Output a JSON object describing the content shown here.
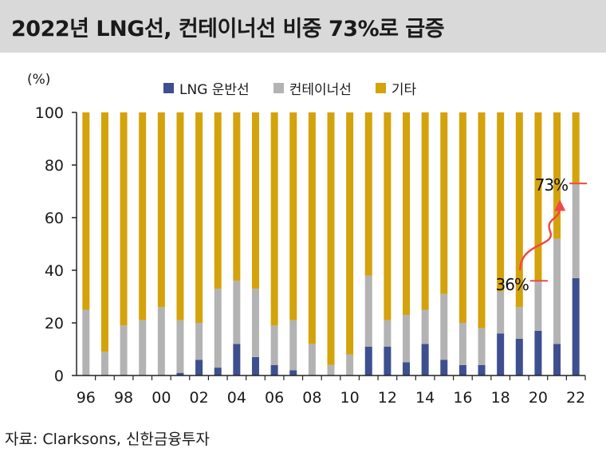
{
  "title": "2022년 LNG선, 컨테이너선 비중 73%로 급증",
  "unit_label": "(%)",
  "source": "자료: Clarksons, 신한금융투자",
  "colors": {
    "lng": "#3d4f8f",
    "container": "#b3b3b3",
    "other": "#d4a20b",
    "axis": "#222222",
    "annotation": "#f04848"
  },
  "legend": [
    {
      "label": "LNG 운반선",
      "color": "#3d4f8f"
    },
    {
      "label": "컨테이너선",
      "color": "#b3b3b3"
    },
    {
      "label": "기타",
      "color": "#d4a20b"
    }
  ],
  "chart_data": {
    "type": "bar",
    "stacked": true,
    "categories": [
      "96",
      "97",
      "98",
      "99",
      "00",
      "01",
      "02",
      "03",
      "04",
      "05",
      "06",
      "07",
      "08",
      "09",
      "10",
      "11",
      "12",
      "13",
      "14",
      "15",
      "16",
      "17",
      "18",
      "19",
      "20",
      "21",
      "22"
    ],
    "x_tick_labels": [
      "96",
      "98",
      "00",
      "02",
      "04",
      "06",
      "08",
      "10",
      "12",
      "14",
      "16",
      "18",
      "20",
      "22"
    ],
    "series": [
      {
        "name": "LNG 운반선",
        "values": [
          0,
          0,
          0,
          0,
          0,
          1,
          6,
          3,
          12,
          7,
          4,
          2,
          0,
          0,
          0,
          11,
          11,
          5,
          12,
          6,
          4,
          4,
          16,
          14,
          17,
          12,
          37
        ]
      },
      {
        "name": "컨테이너선",
        "values": [
          25,
          9,
          19,
          21,
          26,
          20,
          14,
          30,
          24,
          26,
          15,
          19,
          12,
          4,
          8,
          27,
          10,
          18,
          13,
          25,
          16,
          14,
          16,
          12,
          19,
          40,
          36
        ]
      },
      {
        "name": "기타",
        "values": [
          75,
          91,
          81,
          79,
          74,
          79,
          80,
          67,
          64,
          67,
          81,
          79,
          88,
          96,
          92,
          62,
          79,
          77,
          75,
          69,
          80,
          82,
          68,
          74,
          64,
          48,
          27
        ]
      }
    ],
    "ylim": [
      0,
      100
    ],
    "yticks": [
      0,
      20,
      40,
      60,
      80,
      100
    ],
    "annotations": [
      {
        "text": "36%",
        "category": "20",
        "value": 36
      },
      {
        "text": "73%",
        "category": "22",
        "value": 73
      }
    ]
  }
}
